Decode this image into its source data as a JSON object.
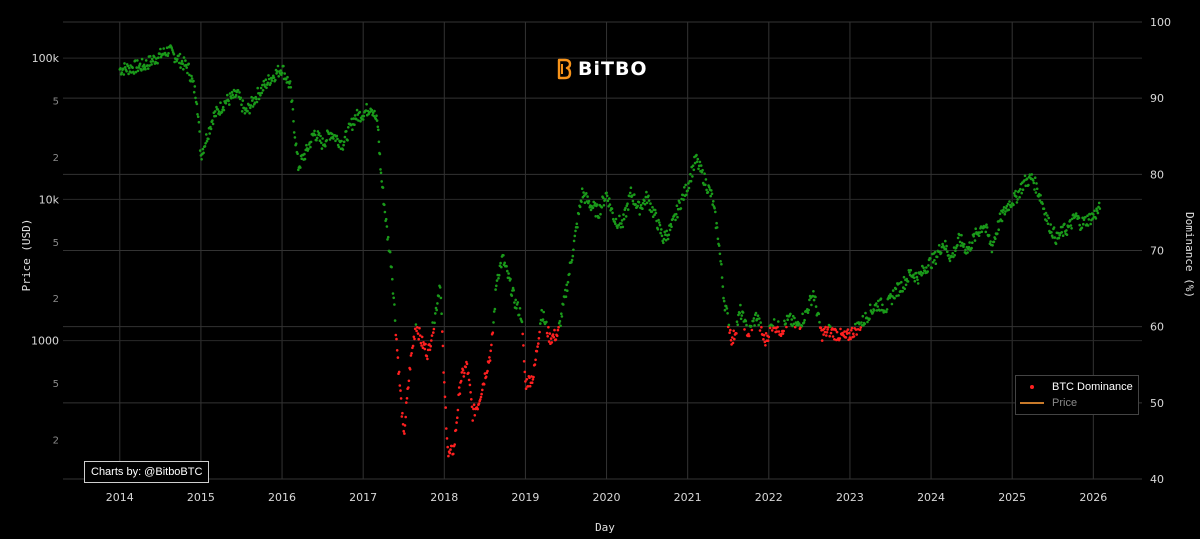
{
  "logo": {
    "text": "BiTBO",
    "color": "#f7931a",
    "icon": "bitbo-logo-icon"
  },
  "credit": {
    "text": "Charts by: @BitboBTC"
  },
  "legend": {
    "items": [
      {
        "label": "BTC Dominance",
        "color": "#ff2020",
        "visible": true
      },
      {
        "label": "Price",
        "color": "#c87a2a",
        "visible": false
      }
    ]
  },
  "colors": {
    "background": "#000000",
    "grid": "#333333",
    "above_threshold": "#1a9a1a",
    "below_threshold": "#ff2020"
  },
  "chart_data": {
    "type": "scatter",
    "xlabel": "Day",
    "ylabel_left": "Price (USD)",
    "ylabel_right": "Dominance (%)",
    "x_ticks": [
      "2014",
      "2015",
      "2016",
      "2017",
      "2018",
      "2019",
      "2020",
      "2021",
      "2022",
      "2023",
      "2024",
      "2025",
      "2026"
    ],
    "y_left_ticks": [
      "100k",
      "5",
      "2",
      "10k",
      "5",
      "2",
      "1000",
      "5",
      "2"
    ],
    "y_right_ticks": [
      "100",
      "90",
      "80",
      "70",
      "60",
      "50",
      "40"
    ],
    "x_range": [
      2013.3,
      2026.6
    ],
    "y_right_range": [
      40,
      100
    ],
    "y_left_scale": "log",
    "threshold_dominance": 60,
    "color_rule": "green when dominance >= 60, red when dominance < 60",
    "series": [
      {
        "name": "BTC Dominance",
        "x": [
          2014.0,
          2014.15,
          2014.3,
          2014.45,
          2014.6,
          2014.75,
          2014.85,
          2014.95,
          2015.0,
          2015.15,
          2015.3,
          2015.45,
          2015.55,
          2015.7,
          2015.85,
          2016.0,
          2016.1,
          2016.2,
          2016.3,
          2016.4,
          2016.5,
          2016.6,
          2016.75,
          2016.9,
          2017.0,
          2017.1,
          2017.18,
          2017.22,
          2017.3,
          2017.35,
          2017.42,
          2017.5,
          2017.58,
          2017.65,
          2017.72,
          2017.8,
          2017.88,
          2017.95,
          2018.0,
          2018.05,
          2018.12,
          2018.2,
          2018.28,
          2018.35,
          2018.42,
          2018.5,
          2018.58,
          2018.65,
          2018.72,
          2018.8,
          2018.88,
          2018.95,
          2019.0,
          2019.1,
          2019.2,
          2019.3,
          2019.4,
          2019.5,
          2019.6,
          2019.7,
          2019.8,
          2019.9,
          2020.0,
          2020.1,
          2020.2,
          2020.3,
          2020.4,
          2020.5,
          2020.6,
          2020.7,
          2020.8,
          2020.9,
          2021.0,
          2021.1,
          2021.2,
          2021.3,
          2021.38,
          2021.45,
          2021.55,
          2021.65,
          2021.75,
          2021.85,
          2021.95,
          2022.05,
          2022.15,
          2022.25,
          2022.35,
          2022.45,
          2022.55,
          2022.65,
          2022.75,
          2022.85,
          2022.95,
          2023.05,
          2023.15,
          2023.25,
          2023.35,
          2023.45,
          2023.55,
          2023.65,
          2023.75,
          2023.85,
          2023.95,
          2024.05,
          2024.15,
          2024.25,
          2024.35,
          2024.45,
          2024.55,
          2024.65,
          2024.75,
          2024.85,
          2024.95,
          2025.05,
          2025.15,
          2025.25,
          2025.35,
          2025.45,
          2025.55,
          2025.62,
          2025.7,
          2025.78,
          2025.85,
          2025.92,
          2026.0,
          2026.08
        ],
        "y": [
          93.8,
          94.0,
          94.3,
          95.3,
          96.3,
          94.9,
          93.8,
          90.0,
          82.5,
          87.5,
          89.5,
          90.5,
          88.0,
          90.5,
          92.5,
          94.0,
          91.5,
          81.0,
          83.0,
          85.5,
          84.0,
          85.5,
          84.0,
          87.5,
          88.0,
          89.0,
          86.5,
          80.0,
          72.0,
          68.0,
          57.0,
          45.5,
          55.0,
          60.5,
          58.0,
          56.5,
          61.0,
          66.0,
          52.0,
          43.0,
          44.0,
          53.0,
          55.0,
          48.5,
          50.0,
          53.5,
          57.0,
          66.5,
          69.0,
          66.0,
          63.0,
          61.5,
          52.5,
          53.5,
          62.0,
          58.5,
          59.0,
          64.5,
          71.0,
          77.5,
          76.0,
          75.0,
          77.5,
          74.0,
          73.5,
          77.5,
          75.5,
          77.0,
          74.5,
          71.5,
          73.0,
          76.0,
          78.5,
          82.0,
          79.5,
          77.0,
          71.5,
          63.5,
          58.0,
          62.0,
          59.0,
          61.5,
          58.0,
          60.5,
          59.5,
          61.0,
          60.0,
          61.5,
          64.5,
          59.0,
          59.5,
          59.0,
          58.5,
          59.5,
          60.5,
          62.0,
          63.0,
          62.5,
          64.5,
          65.5,
          67.0,
          66.5,
          68.0,
          69.0,
          71.0,
          69.0,
          71.5,
          70.0,
          72.0,
          73.5,
          70.5,
          74.0,
          76.0,
          77.0,
          79.0,
          79.5,
          77.0,
          73.5,
          71.5,
          72.5,
          73.0,
          74.5,
          73.5,
          74.0,
          74.5,
          75.5
        ]
      }
    ]
  }
}
